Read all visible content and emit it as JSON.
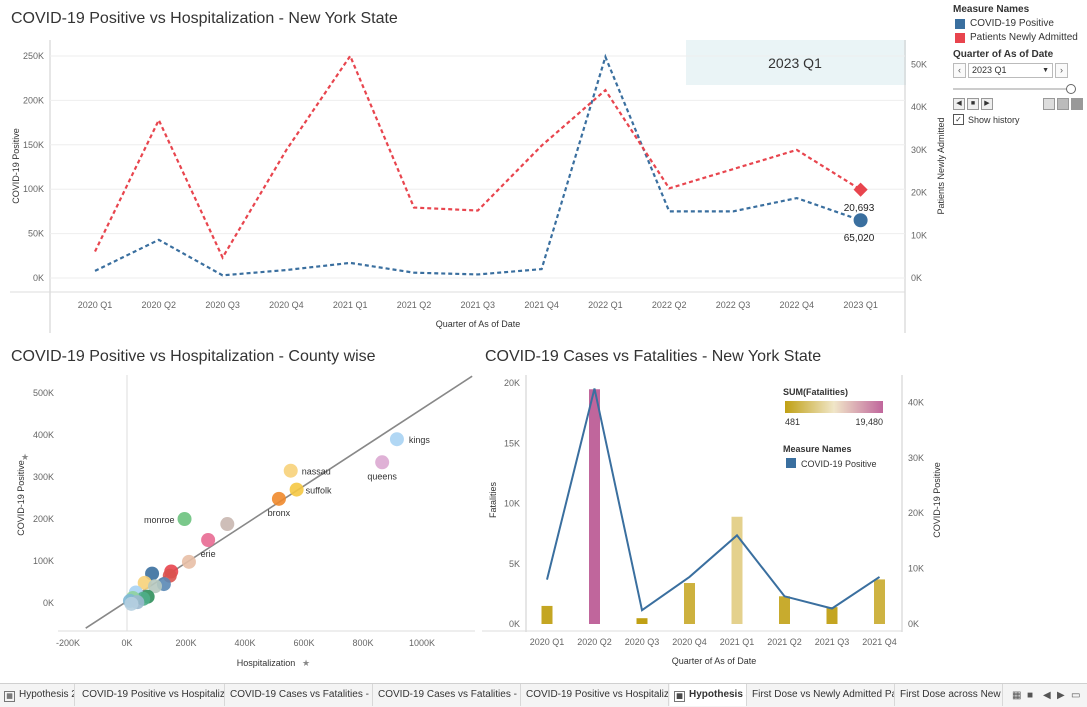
{
  "chart1": {
    "title": "COVID-19 Positive vs Hospitalization - New York State",
    "overlay_label": "2023 Q1",
    "xlabel": "Quarter of As of Date",
    "ylabel_left": "COVID-19 Positive",
    "ylabel_right": "Patients Newly Admitted",
    "left_ticks": [
      "250K",
      "200K",
      "150K",
      "100K",
      "50K",
      "0K"
    ],
    "right_ticks": [
      "50K",
      "40K",
      "30K",
      "20K",
      "10K",
      "0K"
    ],
    "label_admitted": "20,693",
    "label_positive": "65,020"
  },
  "chart2": {
    "title": "COVID-19 Positive vs Hospitalization - County wise",
    "xlabel": "Hospitalization",
    "ylabel": "COVID-19 Positive",
    "x_ticks": [
      "-200K",
      "0K",
      "200K",
      "400K",
      "600K",
      "800K",
      "1000K"
    ],
    "y_ticks": [
      "500K",
      "400K",
      "300K",
      "200K",
      "100K",
      "0K"
    ]
  },
  "chart3": {
    "title": "COVID-19 Cases vs Fatalities - New York State",
    "xlabel": "Quarter of As of Date",
    "ylabel_left": "Fatalities",
    "ylabel_right": "COVID-19 Positive",
    "left_ticks": [
      "20K",
      "15K",
      "10K",
      "5K",
      "0K"
    ],
    "right_ticks": [
      "40K",
      "30K",
      "20K",
      "10K",
      "0K"
    ],
    "fatal_legend_title": "SUM(Fatalities)",
    "fatal_min": "481",
    "fatal_max": "19,480",
    "measure_title": "Measure Names",
    "measure_item": "COVID-19 Positive"
  },
  "legend": {
    "heading": "Measure Names",
    "items": [
      {
        "label": "COVID-19 Positive",
        "color": "#3a6f9f"
      },
      {
        "label": "Patients Newly Admitted",
        "color": "#e8454e"
      }
    ],
    "quarter_heading": "Quarter of As of Date",
    "quarter_value": "2023 Q1",
    "show_history": "Show history"
  },
  "tabs": [
    {
      "label": "Hypothesis 2"
    },
    {
      "label": "COVID-19 Positive vs Hospitaliz..."
    },
    {
      "label": "COVID-19 Cases vs Fatalities - K..."
    },
    {
      "label": "COVID-19 Cases vs Fatalities - N..."
    },
    {
      "label": "COVID-19 Positive vs Hospitaliz..."
    },
    {
      "label": "Hypothesis 3"
    },
    {
      "label": "First Dose vs Newly Admitted Pa..."
    },
    {
      "label": "First Dose across New Yo"
    }
  ],
  "chart_data": [
    {
      "type": "line",
      "title": "COVID-19 Positive vs Hospitalization - New York State",
      "xlabel": "Quarter of As of Date",
      "ylabel": "COVID-19 Positive",
      "y2label": "Patients Newly Admitted",
      "categories": [
        "2020 Q1",
        "2020 Q2",
        "2020 Q3",
        "2020 Q4",
        "2021 Q1",
        "2021 Q2",
        "2021 Q3",
        "2021 Q4",
        "2022 Q1",
        "2022 Q2",
        "2022 Q3",
        "2022 Q4",
        "2023 Q1"
      ],
      "ylim": [
        0,
        250000
      ],
      "y2lim": [
        0,
        52000
      ],
      "series": [
        {
          "name": "COVID-19 Positive",
          "axis": "left",
          "color": "#3a6f9f",
          "values": [
            8000,
            43000,
            3000,
            9000,
            17000,
            6000,
            4000,
            10000,
            249000,
            75000,
            75000,
            90000,
            65020
          ]
        },
        {
          "name": "Patients Newly Admitted",
          "axis": "right",
          "color": "#e8454e",
          "values": [
            6200,
            37000,
            4800,
            30000,
            52000,
            16500,
            15800,
            31000,
            44000,
            21000,
            25500,
            30000,
            20693
          ]
        }
      ]
    },
    {
      "type": "scatter",
      "title": "COVID-19 Positive vs Hospitalization - County wise",
      "xlabel": "Hospitalization",
      "ylabel": "COVID-19 Positive",
      "xlim": [
        -200000,
        1170000
      ],
      "ylim": [
        -60000,
        540000
      ],
      "trend_line": [
        [
          -140000,
          -60000
        ],
        [
          1170000,
          540000
        ]
      ],
      "points": [
        {
          "label": "kings",
          "x": 915000,
          "y": 390000,
          "color": "#a9d3f3"
        },
        {
          "label": "queens",
          "x": 865000,
          "y": 335000,
          "color": "#dca9d2"
        },
        {
          "label": "nassau",
          "x": 555000,
          "y": 315000,
          "color": "#f7d27a"
        },
        {
          "label": "suffolk",
          "x": 575000,
          "y": 270000,
          "color": "#f5c842"
        },
        {
          "label": "bronx",
          "x": 515000,
          "y": 248000,
          "color": "#ef8a2c"
        },
        {
          "label": "monroe",
          "x": 195000,
          "y": 200000,
          "color": "#6cc27e"
        },
        {
          "label": "",
          "x": 340000,
          "y": 188000,
          "color": "#c9b7b0"
        },
        {
          "label": "erie",
          "x": 275000,
          "y": 150000,
          "color": "#e86a92"
        },
        {
          "label": "",
          "x": 210000,
          "y": 98000,
          "color": "#e8bfa6"
        },
        {
          "label": "",
          "x": 150000,
          "y": 75000,
          "color": "#e8454e"
        },
        {
          "label": "",
          "x": 145000,
          "y": 65000,
          "color": "#d9534f"
        },
        {
          "label": "",
          "x": 85000,
          "y": 70000,
          "color": "#3a6f9f"
        },
        {
          "label": "",
          "x": 125000,
          "y": 45000,
          "color": "#5a88b5"
        },
        {
          "label": "",
          "x": 60000,
          "y": 48000,
          "color": "#f7d27a"
        },
        {
          "label": "",
          "x": 95000,
          "y": 40000,
          "color": "#b7c9c0"
        },
        {
          "label": "",
          "x": 30000,
          "y": 25000,
          "color": "#a9d3f3"
        },
        {
          "label": "",
          "x": 70000,
          "y": 15000,
          "color": "#2f8f5b"
        },
        {
          "label": "",
          "x": 55000,
          "y": 10000,
          "color": "#4fae8a"
        },
        {
          "label": "",
          "x": 20000,
          "y": 12000,
          "color": "#8fd19e"
        },
        {
          "label": "",
          "x": 10000,
          "y": 5000,
          "color": "#7fb8d6"
        },
        {
          "label": "",
          "x": 35000,
          "y": 2000,
          "color": "#9bb8cf"
        },
        {
          "label": "",
          "x": 15000,
          "y": -2000,
          "color": "#b5cfe0"
        }
      ]
    },
    {
      "type": "bar",
      "title": "COVID-19 Cases vs Fatalities - New York State",
      "xlabel": "Quarter of As of Date",
      "ylabel": "Fatalities",
      "y2label": "COVID-19 Positive",
      "categories": [
        "2020 Q1",
        "2020 Q2",
        "2020 Q3",
        "2020 Q4",
        "2021 Q1",
        "2021 Q2",
        "2021 Q3",
        "2021 Q4"
      ],
      "ylim": [
        0,
        20000
      ],
      "y2lim": [
        0,
        43500
      ],
      "series": [
        {
          "name": "SUM(Fatalities)",
          "axis": "left",
          "kind": "bar",
          "values": [
            1500,
            19480,
            481,
            3400,
            8900,
            2300,
            1400,
            3700
          ]
        },
        {
          "name": "COVID-19 Positive",
          "axis": "right",
          "kind": "line",
          "color": "#3a6f9f",
          "values": [
            8000,
            42500,
            2500,
            8500,
            16000,
            5000,
            2800,
            8500
          ]
        }
      ],
      "color_scale": {
        "min": 481,
        "max": 19480,
        "low_color": "#c0a014",
        "high_color": "#c0669c"
      }
    }
  ]
}
